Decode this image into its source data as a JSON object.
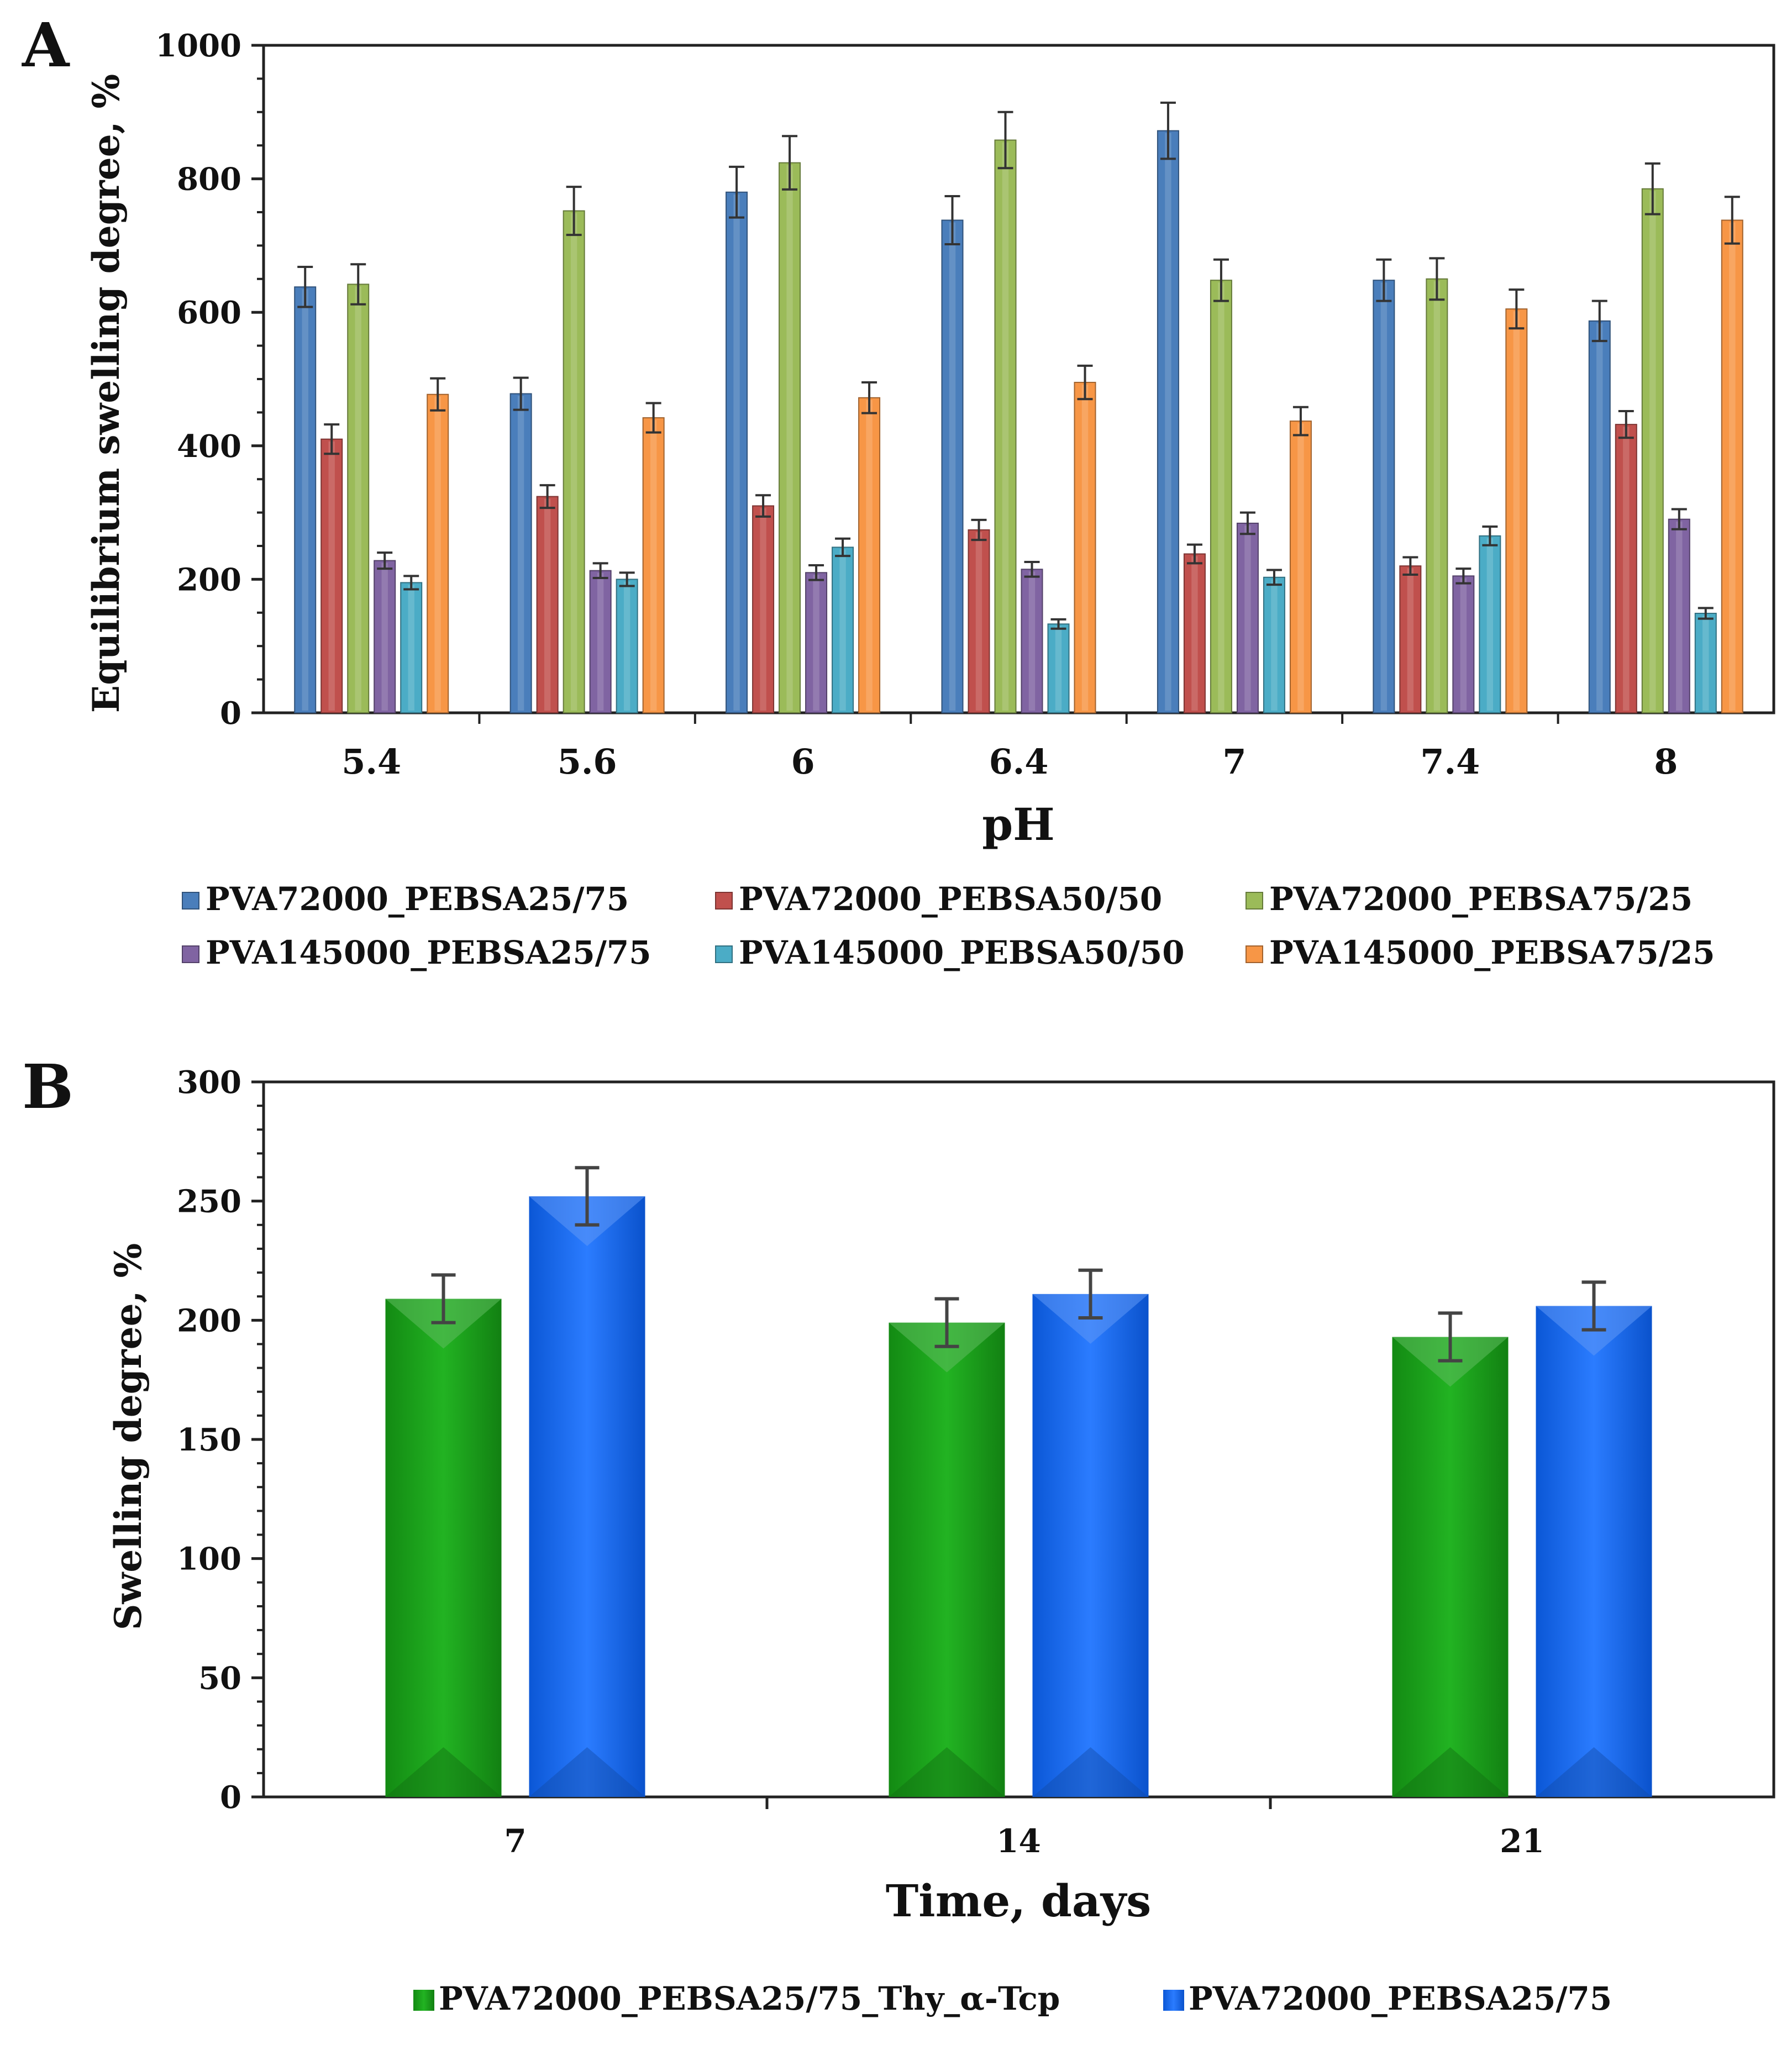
{
  "chart_data": [
    {
      "panel_label": "A",
      "type": "bar",
      "xlabel": "pH",
      "ylabel": "Equilibrium swelling degree, %",
      "ylim": [
        0,
        1000
      ],
      "yticks": [
        "0",
        "200",
        "400",
        "600",
        "800",
        "1000"
      ],
      "grid": false,
      "legend_position": "bottom",
      "categories": [
        "5.4",
        "5.6",
        "6",
        "6.4",
        "7",
        "7.4",
        "8"
      ],
      "series": [
        {
          "name": "PVA72000_PEBSA25/75",
          "color": "#4a7ebb",
          "values": [
            638,
            478,
            780,
            738,
            872,
            648,
            587
          ],
          "errors": [
            30,
            24,
            38,
            36,
            42,
            31,
            30
          ]
        },
        {
          "name": "PVA72000_PEBSA50/50",
          "color": "#c0504d",
          "values": [
            410,
            324,
            310,
            274,
            238,
            220,
            432
          ],
          "errors": [
            22,
            17,
            16,
            15,
            14,
            13,
            20
          ]
        },
        {
          "name": "PVA72000_PEBSA75/25",
          "color": "#9bbb59",
          "values": [
            642,
            752,
            824,
            858,
            648,
            650,
            785
          ],
          "errors": [
            30,
            36,
            40,
            42,
            31,
            31,
            38
          ]
        },
        {
          "name": "PVA145000_PEBSA25/75",
          "color": "#8064a2",
          "values": [
            228,
            213,
            210,
            215,
            284,
            205,
            290
          ],
          "errors": [
            12,
            11,
            11,
            11,
            16,
            11,
            15
          ]
        },
        {
          "name": "PVA145000_PEBSA50/50",
          "color": "#4bacc6",
          "values": [
            195,
            200,
            248,
            133,
            203,
            265,
            149
          ],
          "errors": [
            10,
            10,
            13,
            7,
            11,
            14,
            8
          ]
        },
        {
          "name": "PVA145000_PEBSA75/25",
          "color": "#f79646",
          "values": [
            477,
            442,
            472,
            495,
            437,
            605,
            738
          ],
          "errors": [
            24,
            22,
            23,
            25,
            21,
            29,
            35
          ]
        }
      ]
    },
    {
      "panel_label": "B",
      "type": "bar",
      "xlabel": "Time, days",
      "ylabel": "Swelling degree, %",
      "ylim": [
        0,
        300
      ],
      "yticks": [
        "0",
        "50",
        "100",
        "150",
        "200",
        "250",
        "300"
      ],
      "grid": false,
      "legend_position": "bottom",
      "categories": [
        "7",
        "14",
        "21"
      ],
      "series": [
        {
          "name": "PVA72000_PEBSA25/75_Thy_α-Tcp",
          "color": "#1a9e1a",
          "values": [
            209,
            199,
            193
          ],
          "errors": [
            10,
            10,
            10
          ]
        },
        {
          "name": "PVA72000_PEBSA25/75",
          "color": "#1a6cf0",
          "values": [
            252,
            211,
            206
          ],
          "errors": [
            12,
            10,
            10
          ]
        }
      ]
    }
  ]
}
